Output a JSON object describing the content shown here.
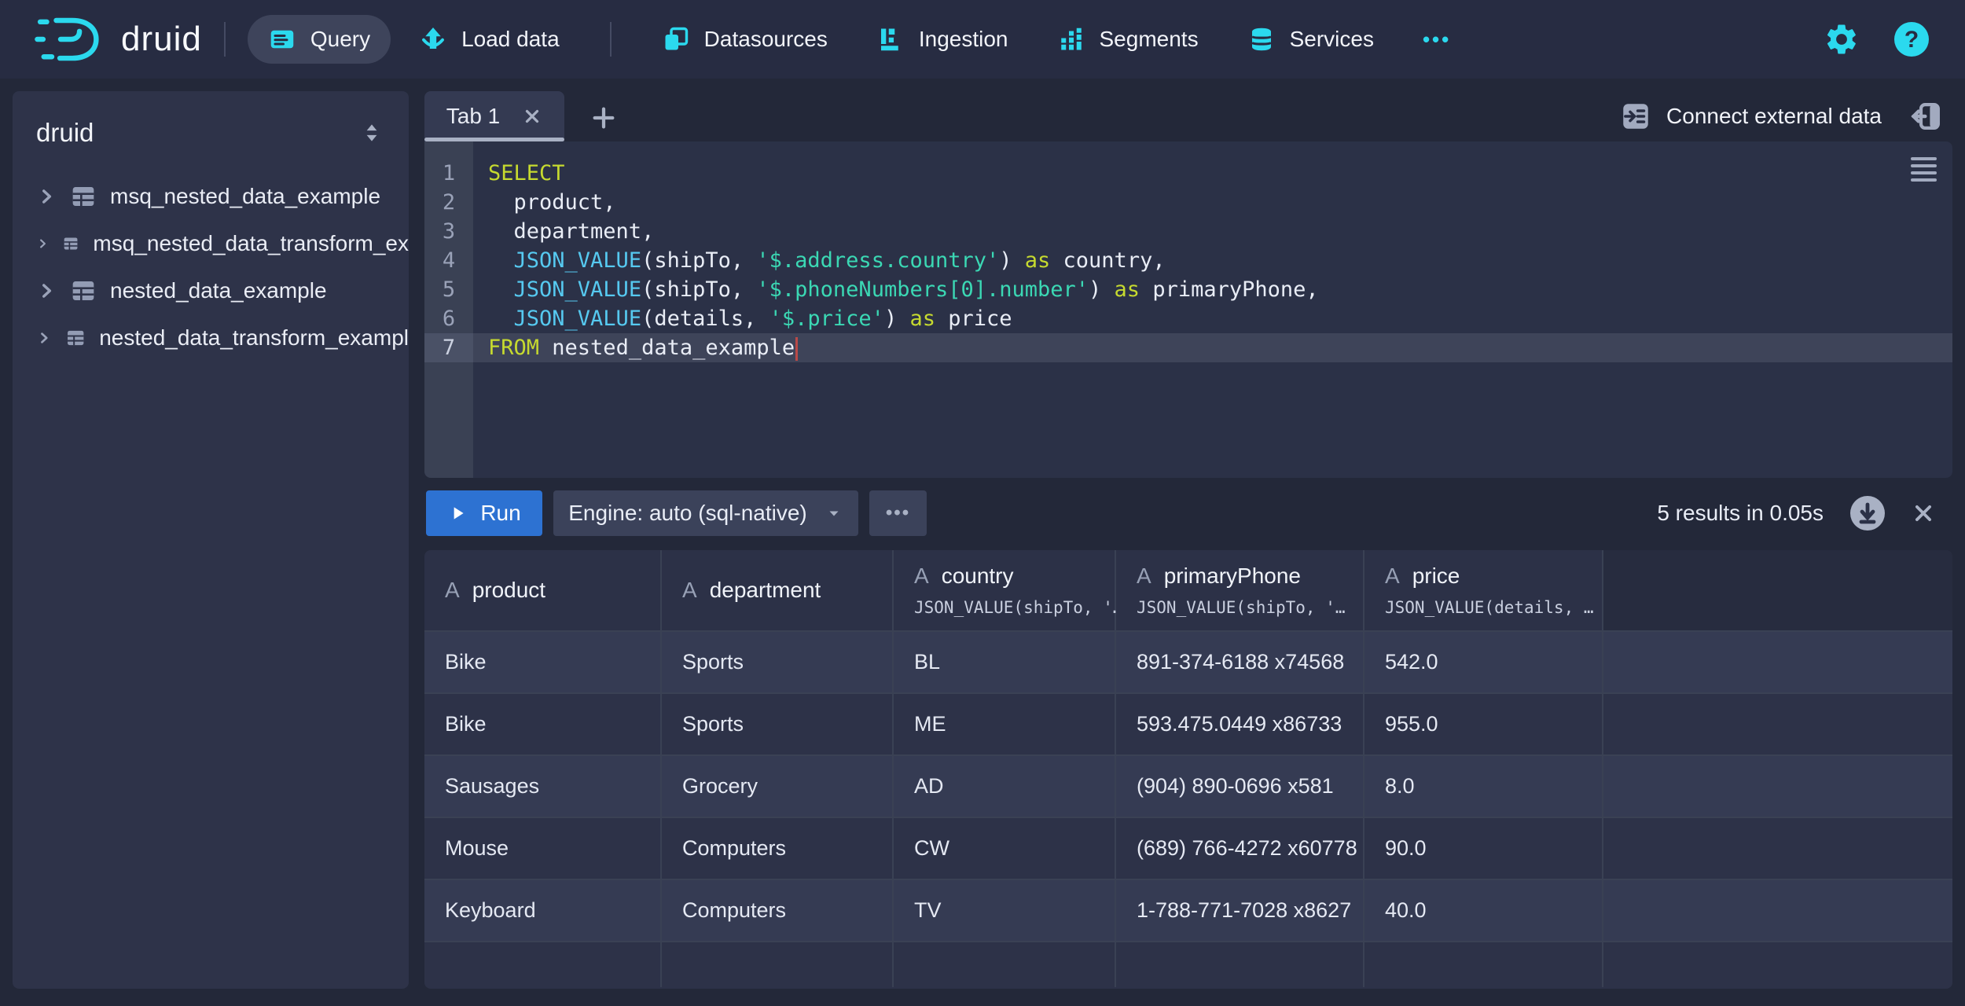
{
  "colors": {
    "accent_cyan": "#2BD9EE",
    "run_button_blue": "#2D72D2",
    "sql_keyword": "#C6DA2F",
    "sql_function": "#56C9F0",
    "sql_string": "#3BD8B4",
    "cursor_red": "#B94A48"
  },
  "navbar": {
    "logo_text": "druid",
    "items": [
      {
        "label": "Query",
        "icon": "query-icon",
        "active": true
      },
      {
        "label": "Load data",
        "icon": "load-data-icon"
      },
      {
        "divider": true
      },
      {
        "label": "Datasources",
        "icon": "datasources-icon"
      },
      {
        "label": "Ingestion",
        "icon": "ingestion-icon"
      },
      {
        "label": "Segments",
        "icon": "segments-icon"
      },
      {
        "label": "Services",
        "icon": "services-icon"
      },
      {
        "label": "•••",
        "more": true
      }
    ]
  },
  "sidebar": {
    "schema": "druid",
    "tables": [
      {
        "label": "msq_nested_data_example"
      },
      {
        "label": "msq_nested_data_transform_ex"
      },
      {
        "label": "nested_data_example"
      },
      {
        "label": "nested_data_transform_exampl"
      }
    ]
  },
  "tabbar": {
    "tabs": [
      {
        "label": "Tab 1"
      }
    ],
    "connect_label": "Connect external data"
  },
  "editor": {
    "cursor_line": 7,
    "lines": [
      {
        "n": 1,
        "seg": [
          [
            "kw",
            "SELECT"
          ]
        ]
      },
      {
        "n": 2,
        "seg": [
          [
            "pl",
            "  product,"
          ]
        ]
      },
      {
        "n": 3,
        "seg": [
          [
            "pl",
            "  department,"
          ]
        ]
      },
      {
        "n": 4,
        "seg": [
          [
            "pl",
            "  "
          ],
          [
            "fn",
            "JSON_VALUE"
          ],
          [
            "pl",
            "(shipTo, "
          ],
          [
            "str",
            "'$.address.country'"
          ],
          [
            "pl",
            ") "
          ],
          [
            "kw",
            "as"
          ],
          [
            "pl",
            " country,"
          ]
        ]
      },
      {
        "n": 5,
        "seg": [
          [
            "pl",
            "  "
          ],
          [
            "fn",
            "JSON_VALUE"
          ],
          [
            "pl",
            "(shipTo, "
          ],
          [
            "str",
            "'$.phoneNumbers[0].number'"
          ],
          [
            "pl",
            ") "
          ],
          [
            "kw",
            "as"
          ],
          [
            "pl",
            " primaryPhone,"
          ]
        ]
      },
      {
        "n": 6,
        "seg": [
          [
            "pl",
            "  "
          ],
          [
            "fn",
            "JSON_VALUE"
          ],
          [
            "pl",
            "(details, "
          ],
          [
            "str",
            "'$.price'"
          ],
          [
            "pl",
            ") "
          ],
          [
            "kw",
            "as"
          ],
          [
            "pl",
            " price"
          ]
        ]
      },
      {
        "n": 7,
        "seg": [
          [
            "kw",
            "FROM"
          ],
          [
            "pl",
            " nested_data_example"
          ]
        ]
      }
    ]
  },
  "runbar": {
    "run_label": "Run",
    "engine_label": "Engine: auto (sql-native)",
    "more_label": "•••",
    "status_text": "5 results in 0.05s"
  },
  "results": {
    "columns": [
      {
        "icon": "A",
        "name": "product",
        "expr": ""
      },
      {
        "icon": "A",
        "name": "department",
        "expr": ""
      },
      {
        "icon": "A",
        "name": "country",
        "expr": "JSON_VALUE(shipTo, '…"
      },
      {
        "icon": "A",
        "name": "primaryPhone",
        "expr": "JSON_VALUE(shipTo, '…"
      },
      {
        "icon": "A",
        "name": "price",
        "expr": "JSON_VALUE(details, …"
      }
    ],
    "rows": [
      [
        "Bike",
        "Sports",
        "BL",
        "891-374-6188 x74568",
        "542.0"
      ],
      [
        "Bike",
        "Sports",
        "ME",
        "593.475.0449 x86733",
        "955.0"
      ],
      [
        "Sausages",
        "Grocery",
        "AD",
        "(904) 890-0696 x581",
        "8.0"
      ],
      [
        "Mouse",
        "Computers",
        "CW",
        "(689) 766-4272 x60778",
        "90.0"
      ],
      [
        "Keyboard",
        "Computers",
        "TV",
        "1-788-771-7028 x8627",
        "40.0"
      ]
    ]
  }
}
